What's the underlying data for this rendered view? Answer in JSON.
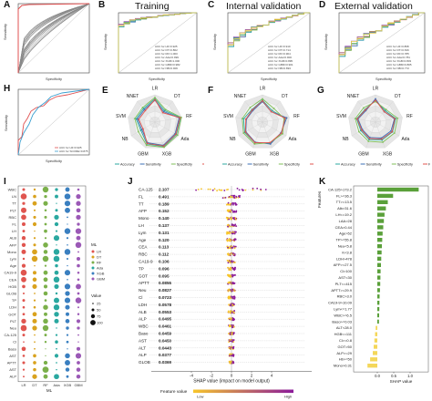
{
  "panel_letters": {
    "A": "A",
    "B": "B",
    "C": "C",
    "D": "D",
    "E": "E",
    "F": "F",
    "G": "G",
    "H": "H",
    "I": "I",
    "J": "J",
    "K": "K"
  },
  "titles": {
    "B": "Training",
    "C": "Internal validation",
    "D": "External validation"
  },
  "roc_axis": {
    "y": "Sensitivity",
    "x": "Specificity"
  },
  "radar": {
    "axes": [
      "LR",
      "DT",
      "RF",
      "Ada",
      "XGB",
      "GBM",
      "NB",
      "SVM",
      "NNET"
    ],
    "legend": [
      "Accuracy",
      "Sensitivity",
      "Specificity",
      "F1"
    ],
    "colors": [
      "#2ea8a0",
      "#3b6fb6",
      "#7fbf5a",
      "#e0554f"
    ]
  },
  "colors": {
    "accent_red": "#e05050",
    "accent_blue": "#3a7fc0",
    "shap_low": "#f7c52a",
    "shap_high": "#8b1a9a",
    "bar_green": "#5aa03a",
    "bar_yellow": "#f4d75a"
  },
  "panel_h": {
    "legend1": "AUC for LR=0.925",
    "legend2": "AUC for SCORE=0.875"
  },
  "panel_i": {
    "rows": [
      "WBC",
      "LN",
      "TT",
      "PLT",
      "RBC",
      "FL",
      "LH",
      "ALB",
      "AFP",
      "Mono",
      "Lym",
      "Age",
      "CA19-9",
      "CEA",
      "HGB",
      "GLOB",
      "TP",
      "LDH",
      "GOT",
      "PLT",
      "Neu",
      "CA-125",
      "Cl",
      "Baso",
      "AST",
      "APTT",
      "AST",
      "ALP"
    ],
    "cols": [
      "LR",
      "DT",
      "RF",
      "Ada",
      "XGB",
      "GBM"
    ],
    "xlabel": "ML",
    "legend_title_ml": "ML",
    "legend_ml": [
      "LR",
      "DT",
      "RF",
      "Ada",
      "XGB",
      "GBM"
    ],
    "legend_title_val": "Value",
    "legend_val": [
      "25",
      "50",
      "75",
      "100"
    ]
  },
  "chart_data": {
    "type": "bar",
    "title": "",
    "panel_j": {
      "features": [
        "CA-125",
        "FL",
        "TT",
        "AFP",
        "Mono",
        "LH",
        "Lym",
        "Age",
        "CEA",
        "RBC",
        "CA19-9",
        "TP",
        "GOT",
        "APTT",
        "Neu",
        "Cl",
        "LDH",
        "ALB",
        "ALP",
        "WBC",
        "Baso",
        "AST",
        "ALT",
        "ALP",
        "GLOB"
      ],
      "values": [
        "2.107",
        "0.491",
        "0.189",
        "0.152",
        "0.140",
        "0.137",
        "0.131",
        "0.120",
        "0.113",
        "0.112",
        "0.106",
        "0.096",
        "0.095",
        "0.0855",
        "0.0827",
        "0.0723",
        "0.0578",
        "0.0553",
        "0.0495",
        "0.0461",
        "0.0459",
        "0.0450",
        "0.0443",
        "0.0377",
        "0.0369"
      ],
      "xlabel": "SHAP value (impact on model output)",
      "xticks": [
        "-4",
        "-2",
        "0",
        "2",
        "4"
      ],
      "legend_title": "Feature value",
      "legend_low": "Low",
      "legend_high": "High"
    },
    "panel_k": {
      "features": [
        "CA-125>173.2",
        "FL>=36.3",
        "TT>=13.5",
        "Alb>31.6",
        "LH<=19.2",
        "LAA>28",
        "CEA>0.44",
        "Age>52",
        "TP>=55.8",
        "Neu<5.8",
        "K<3.8",
        "LDH>478",
        "AFP>=27.5",
        "Cl>100",
        "AST<30",
        "PLT<=415",
        "APTT>=29.9",
        "RBC>3.0",
        "CA19-9>10.09",
        "Lym<=1.77",
        "WBC>=6.5",
        "Baso>=0.03",
        "ALT<28.0",
        "HGB<=111",
        "Cl>=0.8",
        "GOT>50",
        "ALP>=29",
        "Hb>=50",
        "Mono>0.31"
      ],
      "values": [
        1.26,
        0.48,
        0.32,
        0.26,
        0.22,
        0.2,
        0.18,
        0.16,
        0.15,
        0.14,
        0.13,
        0.12,
        0.11,
        0.1,
        0.095,
        0.09,
        0.08,
        0.07,
        0.065,
        0.06,
        0.055,
        0.05,
        -0.05,
        -0.07,
        -0.09,
        -0.11,
        -0.14,
        -0.22,
        -0.3
      ],
      "xlabel": "SHAP value",
      "ylabel": "Features",
      "xticks": [
        "0.0",
        "0.5",
        "1.0"
      ]
    }
  }
}
